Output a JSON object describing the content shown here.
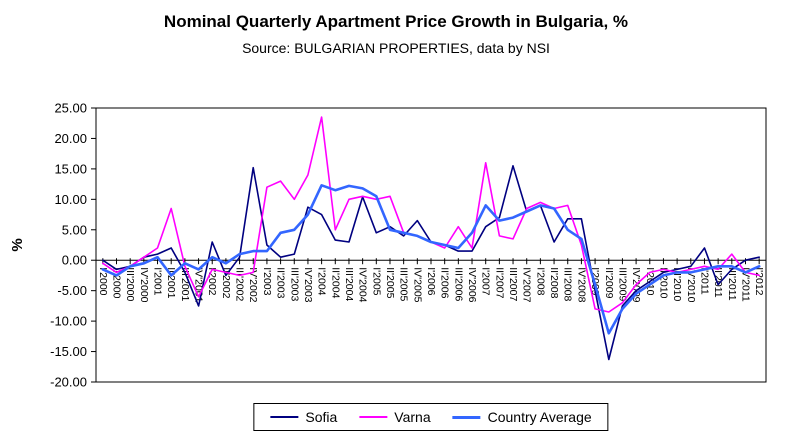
{
  "chart_data": {
    "type": "line",
    "title": "Nominal Quarterly Apartment Price Growth in Bulgaria, %",
    "subtitle": "Source: BULGARIAN PROPERTIES, data by NSI",
    "ylabel": "%",
    "xlabel": "",
    "ylim": [
      -20,
      25
    ],
    "ytick_step": 5,
    "y_ticks": [
      "25.00",
      "20.00",
      "15.00",
      "10.00",
      "5.00",
      "0.00",
      "-5.00",
      "-10.00",
      "-15.00",
      "-20.00"
    ],
    "grid": false,
    "legend_position": "bottom",
    "categories": [
      "I'2000",
      "II'2000",
      "III'2000",
      "IV'2000",
      "I'2001",
      "II'2001",
      "III'2001",
      "IV'2001",
      "I'2002",
      "II'2002",
      "III'2002",
      "IV'2002",
      "I'2003",
      "II'2003",
      "III'2003",
      "IV'2003",
      "I'2004",
      "II'2004",
      "III'2004",
      "IV'2004",
      "I'2005",
      "II'2005",
      "III'2005",
      "IV'2005",
      "I'2006",
      "II'2006",
      "III'2006",
      "IV'2006",
      "I'2007",
      "II'2007",
      "III'2007",
      "IV'2007",
      "I'2008",
      "II'2008",
      "III'2008",
      "IV'2008",
      "I'2009",
      "II'2009",
      "III'2009",
      "IV'2009",
      "I'2010",
      "II'2010",
      "III'2010",
      "IV'2010",
      "I'2011",
      "II'2011",
      "III'2011",
      "IV'2011",
      "I'2012"
    ],
    "series": [
      {
        "name": "Sofia",
        "color": "#000080",
        "values": [
          0.0,
          -1.5,
          -1.0,
          0.5,
          1.0,
          2.0,
          -2.0,
          -7.5,
          3.0,
          -2.5,
          0.5,
          15.2,
          2.5,
          0.5,
          1.0,
          8.7,
          7.5,
          3.3,
          3.0,
          10.4,
          4.5,
          5.5,
          4.0,
          6.5,
          3.0,
          2.5,
          1.5,
          1.5,
          5.5,
          7.0,
          15.5,
          8.0,
          9.0,
          3.0,
          6.8,
          6.8,
          -5.0,
          -16.3,
          -7.5,
          -5.0,
          -3.5,
          -2.0,
          -1.5,
          -1.0,
          2.0,
          -4.0,
          -1.5,
          0.0,
          0.5
        ]
      },
      {
        "name": "Varna",
        "color": "#FF00FF",
        "values": [
          -0.5,
          -2.0,
          -1.0,
          0.5,
          2.0,
          8.5,
          -1.0,
          -6.0,
          -1.5,
          -2.0,
          -2.5,
          -2.0,
          12.0,
          13.0,
          10.0,
          14.0,
          23.5,
          5.0,
          10.0,
          10.5,
          10.0,
          10.5,
          4.5,
          4.0,
          3.0,
          2.0,
          5.5,
          2.0,
          16.0,
          4.0,
          3.5,
          8.5,
          9.5,
          8.5,
          9.0,
          2.5,
          -8.0,
          -8.5,
          -7.0,
          -4.0,
          -2.0,
          -1.5,
          -2.0,
          -1.5,
          -1.0,
          -1.5,
          1.0,
          -2.0,
          -2.5
        ]
      },
      {
        "name": "Country Average",
        "color": "#3366FF",
        "values": [
          -1.5,
          -2.5,
          -1.0,
          -0.5,
          0.5,
          -2.5,
          -0.5,
          -1.5,
          0.5,
          -0.5,
          1.0,
          1.5,
          1.5,
          4.5,
          5.0,
          7.5,
          12.3,
          11.5,
          12.2,
          11.8,
          10.5,
          5.0,
          4.5,
          4.0,
          3.0,
          2.5,
          2.0,
          4.5,
          9.0,
          6.5,
          7.0,
          8.0,
          9.0,
          8.5,
          5.0,
          3.5,
          -4.0,
          -12.0,
          -8.0,
          -5.5,
          -4.0,
          -2.5,
          -2.0,
          -2.0,
          -1.5,
          -1.0,
          -1.0,
          -2.0,
          -1.0
        ]
      }
    ]
  }
}
